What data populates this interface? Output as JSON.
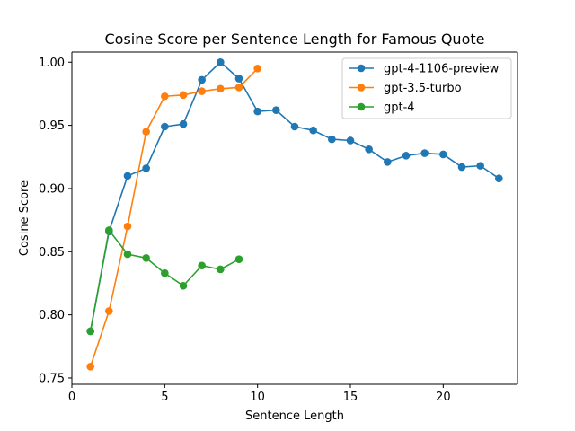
{
  "chart_data": {
    "type": "line",
    "title": "Cosine Score per Sentence Length for Famous Quote",
    "xlabel": "Sentence Length",
    "ylabel": "Cosine Score",
    "xlim": [
      0,
      24
    ],
    "ylim": [
      0.745,
      1.008
    ],
    "xticks": [
      0,
      5,
      10,
      15,
      20
    ],
    "xtick_labels": [
      "0",
      "5",
      "10",
      "15",
      "20"
    ],
    "yticks": [
      0.75,
      0.8,
      0.85,
      0.9,
      0.95,
      1.0
    ],
    "ytick_labels": [
      "0.75",
      "0.80",
      "0.85",
      "0.90",
      "0.95",
      "1.00"
    ],
    "grid": false,
    "legend_position": "top-right",
    "marker": "circle",
    "series": [
      {
        "name": "gpt-4-1106-preview",
        "color": "#1f77b4",
        "x": [
          1,
          2,
          3,
          4,
          5,
          6,
          7,
          8,
          9,
          10,
          11,
          12,
          13,
          14,
          15,
          16,
          17,
          18,
          19,
          20,
          21,
          22,
          23
        ],
        "y": [
          0.787,
          0.866,
          0.91,
          0.916,
          0.949,
          0.951,
          0.986,
          1.0,
          0.987,
          0.961,
          0.962,
          0.949,
          0.946,
          0.939,
          0.938,
          0.931,
          0.921,
          0.926,
          0.928,
          0.927,
          0.917,
          0.918,
          0.908
        ]
      },
      {
        "name": "gpt-3.5-turbo",
        "color": "#ff7f0e",
        "x": [
          1,
          2,
          3,
          4,
          5,
          6,
          7,
          8,
          9,
          10
        ],
        "y": [
          0.759,
          0.803,
          0.87,
          0.945,
          0.973,
          0.974,
          0.977,
          0.979,
          0.98,
          0.995
        ]
      },
      {
        "name": "gpt-4",
        "color": "#2ca02c",
        "x": [
          1,
          2,
          3,
          4,
          5,
          6,
          7,
          8,
          9
        ],
        "y": [
          0.787,
          0.867,
          0.848,
          0.845,
          0.833,
          0.823,
          0.839,
          0.836,
          0.844
        ]
      }
    ]
  }
}
